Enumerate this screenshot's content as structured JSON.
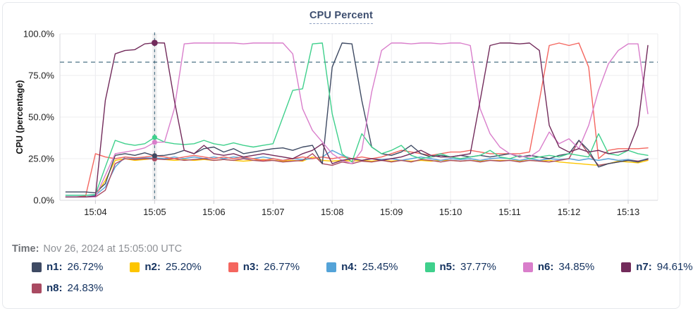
{
  "header": {
    "title": "CPU Percent"
  },
  "time_row": {
    "label": "Time:",
    "value": "Nov 26, 2024 at 15:05:00 UTC"
  },
  "legend": [
    {
      "name": "n1:",
      "value": "26.72%",
      "color": "#3e4a63"
    },
    {
      "name": "n2:",
      "value": "25.20%",
      "color": "#fdc500"
    },
    {
      "name": "n3:",
      "value": "26.77%",
      "color": "#f4665f"
    },
    {
      "name": "n4:",
      "value": "25.45%",
      "color": "#54a3d8"
    },
    {
      "name": "n5:",
      "value": "37.77%",
      "color": "#3fd08c"
    },
    {
      "name": "n6:",
      "value": "34.85%",
      "color": "#d97ecb"
    },
    {
      "name": "n7:",
      "value": "94.61%",
      "color": "#722b5b"
    },
    {
      "name": "n8:",
      "value": "24.83%",
      "color": "#a94a62"
    }
  ],
  "chart_data": {
    "type": "line",
    "title": "CPU Percent",
    "ylabel": "CPU (percentage)",
    "ylim": [
      0,
      100
    ],
    "grid": true,
    "legend_position": "bottom",
    "y_ticks": [
      {
        "v": 0,
        "label": "0.0%"
      },
      {
        "v": 25,
        "label": "25.0%"
      },
      {
        "v": 50,
        "label": "50.0%"
      },
      {
        "v": 75,
        "label": "75.0%"
      },
      {
        "v": 100,
        "label": "100.0%"
      }
    ],
    "x_ticks": [
      {
        "sec": 0,
        "label": "15:04"
      },
      {
        "sec": 60,
        "label": "15:05"
      },
      {
        "sec": 120,
        "label": "15:06"
      },
      {
        "sec": 180,
        "label": "15:07"
      },
      {
        "sec": 240,
        "label": "15:08"
      },
      {
        "sec": 300,
        "label": "15:09"
      },
      {
        "sec": 360,
        "label": "15:10"
      },
      {
        "sec": 420,
        "label": "15:11"
      },
      {
        "sec": 480,
        "label": "15:12"
      },
      {
        "sec": 540,
        "label": "15:13"
      }
    ],
    "threshold_value": 83,
    "threshold_color": "#4e7487",
    "crosshair_sec": 60,
    "crosshair_color": "#4e7487",
    "x_sec": [
      -30,
      -20,
      -10,
      0,
      10,
      20,
      30,
      40,
      50,
      60,
      70,
      80,
      90,
      100,
      110,
      120,
      130,
      140,
      150,
      160,
      170,
      180,
      190,
      200,
      210,
      220,
      230,
      240,
      250,
      260,
      270,
      280,
      290,
      300,
      310,
      320,
      330,
      340,
      350,
      360,
      370,
      380,
      390,
      400,
      410,
      420,
      430,
      440,
      450,
      460,
      470,
      480,
      490,
      500,
      510,
      520,
      530,
      540,
      550,
      560
    ],
    "series": [
      {
        "name": "n1",
        "color": "#3e4a63",
        "values": [
          5,
          5,
          5,
          4.5,
          10,
          27,
          28,
          27,
          28.5,
          26.72,
          27,
          28,
          30,
          28,
          31,
          32,
          29,
          31,
          28,
          29,
          30,
          31,
          31.5,
          30,
          32,
          33,
          22,
          80,
          94.5,
          94,
          60,
          32,
          28,
          27,
          29,
          33,
          28,
          26,
          27,
          26,
          27,
          26,
          27,
          26,
          27,
          28,
          26,
          27,
          26,
          25,
          27,
          28,
          36,
          30,
          20,
          22,
          23,
          24,
          23,
          25
        ]
      },
      {
        "name": "n2",
        "color": "#fdc500",
        "values": [
          2,
          2,
          2,
          2.5,
          12,
          24,
          25,
          24,
          24.5,
          25.2,
          24.5,
          24,
          24.5,
          24,
          24.5,
          24,
          24.5,
          24,
          23.5,
          24,
          24.5,
          24,
          23.5,
          24,
          23.5,
          26,
          24,
          23.5,
          24,
          23.5,
          24,
          23.5,
          24,
          23.5,
          24,
          23.5,
          24,
          23.5,
          24,
          24,
          23.5,
          24,
          23.5,
          24,
          24,
          24,
          23.5,
          24,
          23.5,
          24,
          23,
          22.5,
          22,
          21.5,
          21,
          22,
          23.5,
          23,
          22.5,
          24
        ]
      },
      {
        "name": "n3",
        "color": "#f4665f",
        "values": [
          2,
          2,
          2.5,
          28,
          26,
          25,
          26,
          25.5,
          26,
          26.77,
          26,
          25,
          26,
          27,
          26,
          25,
          26,
          25,
          26,
          25,
          24,
          25,
          24,
          25,
          26,
          25,
          26,
          25,
          26,
          25,
          26,
          25,
          26,
          28,
          30,
          29,
          28,
          27,
          28,
          29,
          29,
          30,
          29,
          28,
          28,
          28,
          28,
          29,
          60,
          93,
          94.5,
          93,
          94.5,
          80,
          25,
          30,
          31,
          31,
          31,
          31.5
        ]
      },
      {
        "name": "n4",
        "color": "#54a3d8",
        "values": [
          3,
          3,
          3,
          3,
          8,
          20,
          26,
          25,
          25.5,
          25.45,
          25,
          26,
          25,
          26,
          25,
          26,
          25,
          26,
          25.5,
          25,
          26,
          25,
          24,
          25,
          24.5,
          25,
          26,
          30,
          27,
          25,
          24,
          25,
          24.5,
          25,
          24,
          25,
          26,
          25,
          24,
          25,
          24.5,
          25,
          24,
          25,
          25.5,
          25,
          24,
          25,
          24,
          25,
          24.5,
          25,
          24,
          25,
          24,
          25,
          24,
          24.5,
          23.5,
          25
        ]
      },
      {
        "name": "n5",
        "color": "#3fd08c",
        "values": [
          3,
          3,
          3,
          3.5,
          20,
          36,
          34,
          33,
          34,
          37.77,
          35,
          34,
          33.5,
          34,
          36,
          34,
          33,
          34.5,
          33,
          32,
          33,
          34,
          50,
          66,
          67,
          94,
          94.5,
          52,
          28,
          23,
          40,
          32,
          28,
          30,
          33,
          27,
          25,
          26,
          28,
          26,
          25,
          26,
          27,
          30,
          26,
          25,
          27,
          25,
          26,
          27,
          26,
          28,
          27,
          26,
          40,
          28,
          27,
          30,
          28,
          27
        ]
      },
      {
        "name": "n6",
        "color": "#d97ecb",
        "values": [
          2,
          2,
          2,
          2,
          15,
          28,
          29,
          30,
          31.5,
          34.85,
          35,
          55,
          94,
          94.5,
          94.5,
          94.5,
          94.5,
          94.5,
          94,
          94.5,
          94.5,
          94.5,
          94.5,
          88,
          55,
          42,
          35,
          28,
          24,
          22,
          30,
          65,
          90,
          94.5,
          94.5,
          94,
          94.5,
          94.5,
          94,
          94.5,
          94.5,
          93,
          55,
          40,
          32,
          28,
          26.5,
          26,
          30,
          41,
          34,
          37,
          31,
          45,
          66,
          82,
          90,
          94,
          94,
          52
        ]
      },
      {
        "name": "n7",
        "color": "#722b5b",
        "values": [
          2,
          2,
          2,
          2.5,
          60,
          88,
          90,
          90.5,
          94,
          94.61,
          94.5,
          60,
          30,
          28,
          33,
          28,
          27,
          28,
          26,
          27,
          28,
          27,
          26,
          25,
          28,
          30,
          34,
          22,
          24,
          25,
          24,
          25,
          24,
          25,
          26,
          28,
          30,
          27,
          26,
          26,
          27,
          28,
          60,
          93,
          94.5,
          94.5,
          94,
          94.5,
          90,
          45,
          32,
          29,
          31,
          29,
          30,
          28,
          29,
          30,
          45,
          93
        ]
      },
      {
        "name": "n8",
        "color": "#a94a62",
        "values": [
          2,
          2,
          2,
          2,
          6,
          22,
          25,
          24.5,
          25,
          24.83,
          24.5,
          25,
          24,
          24.5,
          25,
          24,
          24.5,
          24,
          25,
          24,
          23.5,
          24,
          23,
          23.5,
          24,
          28,
          22,
          21,
          23,
          22,
          23.5,
          23,
          24,
          23,
          24,
          23,
          24.5,
          24,
          23,
          24,
          23.5,
          24,
          23,
          24,
          23.5,
          24,
          23,
          24,
          23.5,
          23,
          24,
          25,
          36,
          28,
          21,
          22,
          23,
          24,
          23.5,
          24.5
        ]
      }
    ]
  }
}
